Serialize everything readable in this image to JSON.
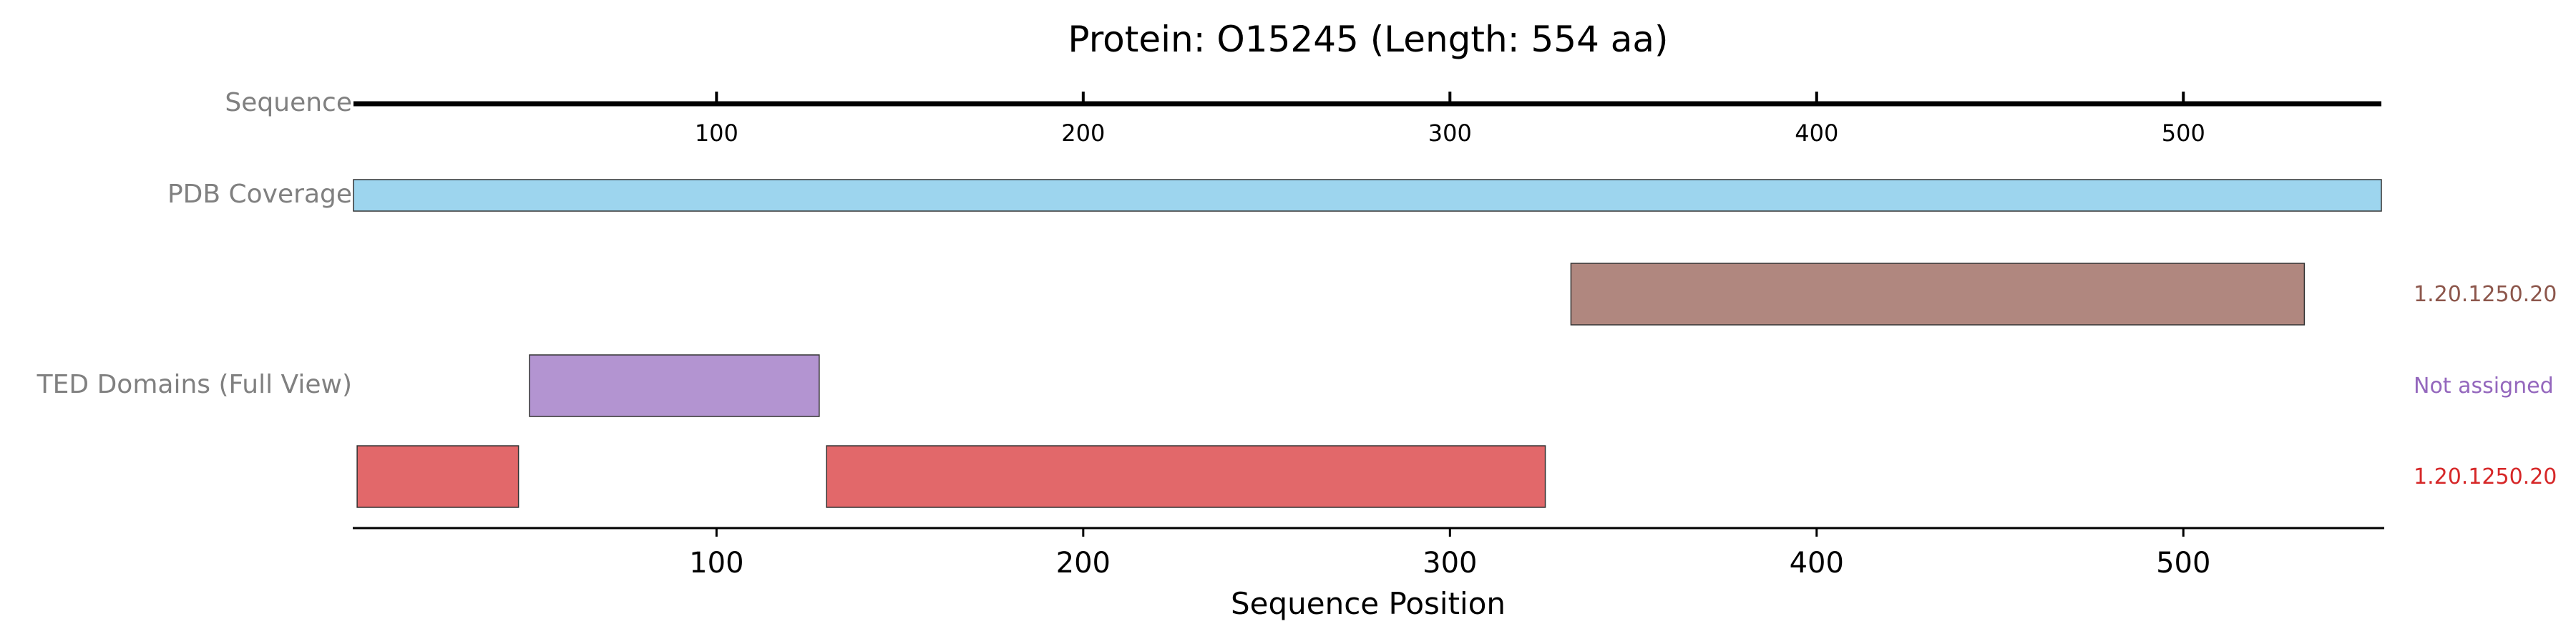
{
  "chart_data": {
    "type": "bar",
    "title": "Protein: O15245 (Length: 554 aa)",
    "xlabel": "Sequence Position",
    "xlim": [
      1,
      554
    ],
    "sequence_ticks": [
      100,
      200,
      300,
      400,
      500
    ],
    "bottom_ticks": [
      100,
      200,
      300,
      400,
      500
    ],
    "track_labels": {
      "sequence": "Sequence",
      "pdb": "PDB Coverage",
      "ted": "TED Domains (Full View)"
    },
    "pdb_coverage": [
      {
        "start": 1,
        "end": 554,
        "color": "#9dd5ee"
      }
    ],
    "ted_domains": [
      {
        "row": 0,
        "start": 333,
        "end": 533,
        "color": "#b0877f",
        "label": "1.20.1250.20",
        "label_color": "#8c564b"
      },
      {
        "row": 1,
        "start": 49,
        "end": 128,
        "color": "#b394d1",
        "label": "Not assigned",
        "label_color": "#9467bd"
      },
      {
        "row": 2,
        "start": 2,
        "end": 46,
        "color": "#e2686a",
        "label": "1.20.1250.20",
        "label_color": "#d62728"
      },
      {
        "row": 2,
        "start": 130,
        "end": 326,
        "color": "#e2686a",
        "label": "",
        "label_color": "#d62728"
      }
    ]
  }
}
